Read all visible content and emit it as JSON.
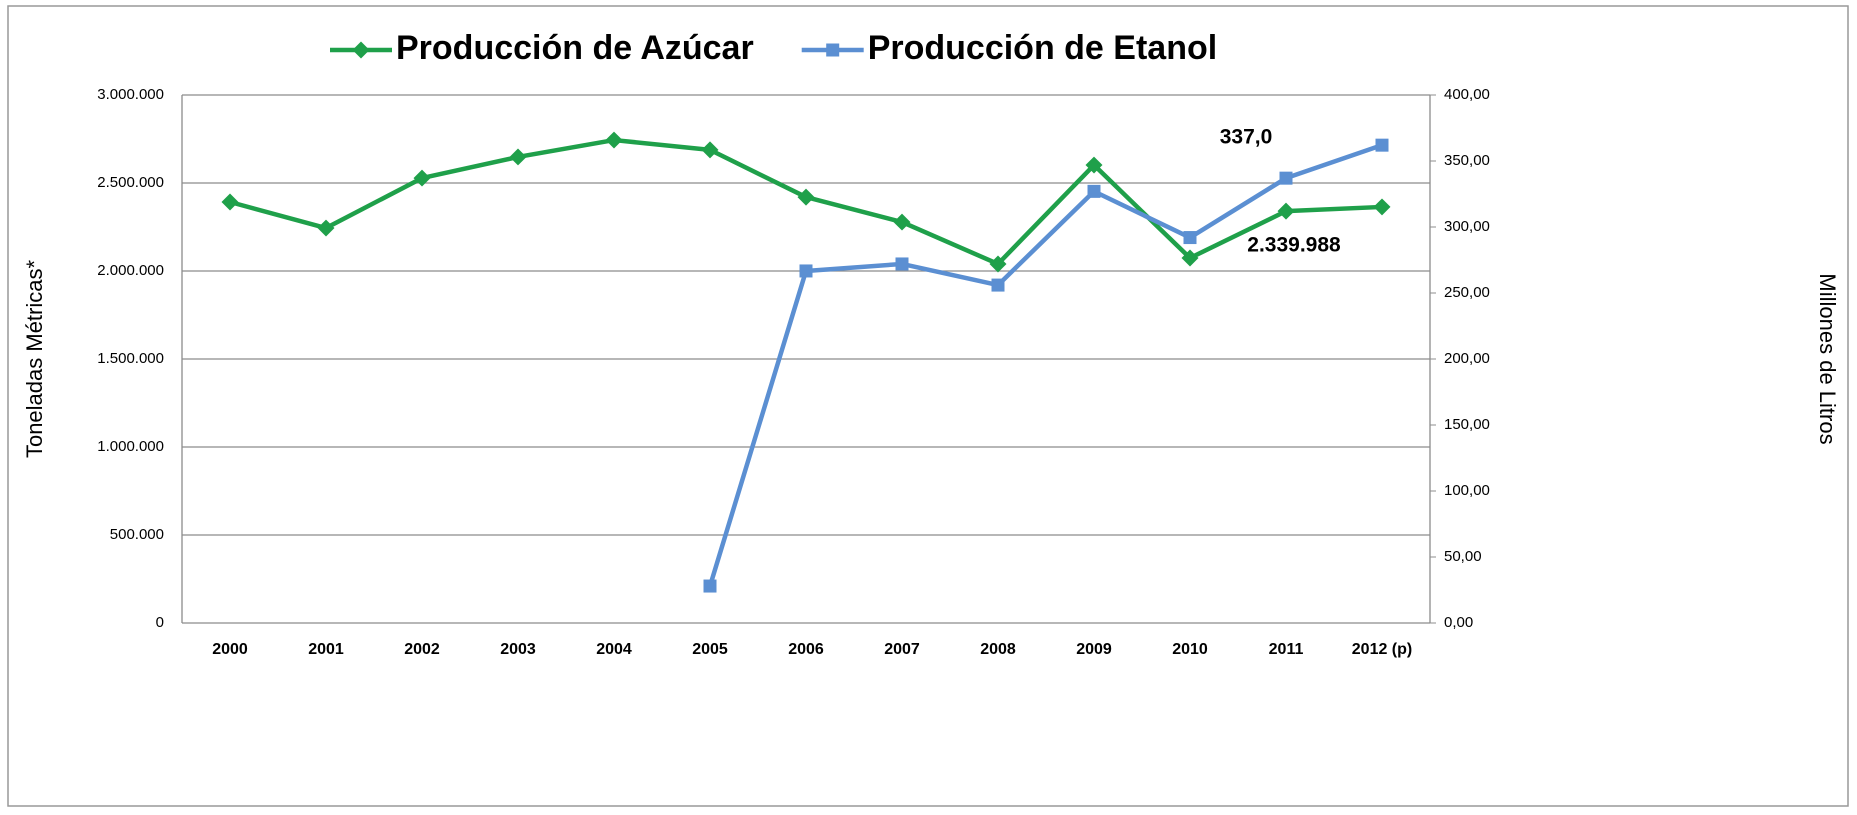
{
  "chart_data": {
    "type": "line",
    "y_label": "Toneladas Métricas*",
    "y2_label": "Millones de Litros",
    "categories": [
      "2000",
      "2001",
      "2002",
      "2003",
      "2004",
      "2005",
      "2006",
      "2007",
      "2008",
      "2009",
      "2010",
      "2011",
      "2012 (p)"
    ],
    "series": [
      {
        "name": "Producción de Azúcar",
        "color": "#1fa04a",
        "marker": "diamond",
        "values": [
          2392000,
          2244000,
          2528000,
          2648000,
          2744000,
          2688000,
          2420000,
          2278000,
          2040000,
          2602000,
          2074000,
          2339988,
          2364000
        ],
        "value_labels": [
          null,
          null,
          null,
          null,
          null,
          null,
          null,
          null,
          null,
          null,
          null,
          "2.339.988",
          null
        ]
      },
      {
        "name": "Producción de Etanol",
        "color": "#5b8fd2",
        "marker": "square",
        "axis": "y2",
        "values": [
          null,
          null,
          null,
          null,
          null,
          28,
          266.7,
          272,
          256,
          327,
          292,
          337.0,
          362
        ],
        "value_labels": [
          null,
          null,
          null,
          null,
          null,
          null,
          null,
          null,
          null,
          null,
          null,
          "337,0",
          null
        ]
      }
    ],
    "ylim": [
      0,
      3000000
    ],
    "yticks": [
      0,
      {
        "value": 500000,
        "label": "500.000"
      },
      {
        "value": 1000000,
        "label": "1.000.000"
      },
      {
        "value": 1500000,
        "label": "1.500.000"
      },
      {
        "value": 2000000,
        "label": "2.000.000"
      },
      {
        "value": 2500000,
        "label": "2.500.000"
      },
      {
        "value": 3000000,
        "label": "3.000.000"
      }
    ],
    "y2lim": [
      0,
      400
    ],
    "y2ticks": [
      {
        "value": 0,
        "label": "0,00"
      },
      {
        "value": 50,
        "label": "50,00"
      },
      {
        "value": 100,
        "label": "100,00"
      },
      {
        "value": 150,
        "label": "150,00"
      },
      {
        "value": 200,
        "label": "200,00"
      },
      {
        "value": 250,
        "label": "250,00"
      },
      {
        "value": 300,
        "label": "300,00"
      },
      {
        "value": 350,
        "label": "350,00"
      },
      {
        "value": 400,
        "label": "400,00"
      }
    ],
    "grid": true,
    "legend": "top"
  }
}
